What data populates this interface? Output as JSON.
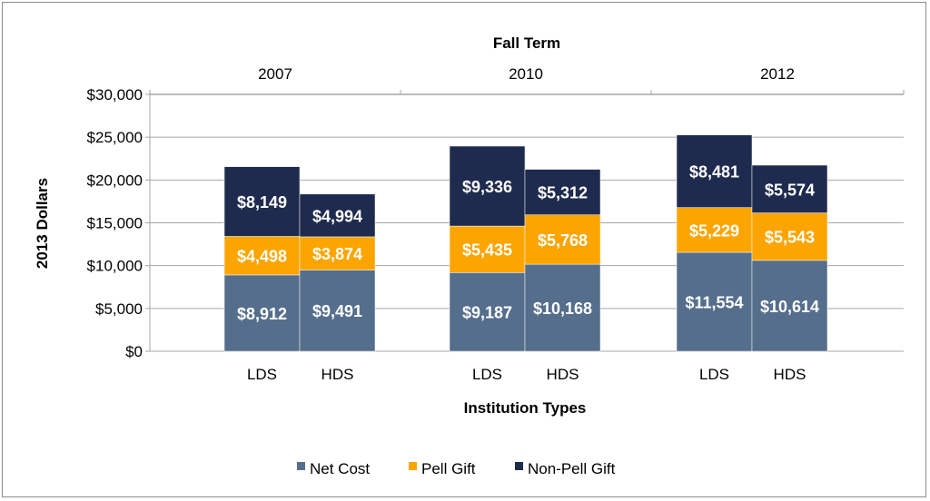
{
  "chart_data": {
    "type": "bar",
    "stacked": true,
    "title": "",
    "top_axis_title": "Fall Term",
    "xlabel": "Institution Types",
    "ylabel": "2013 Dollars",
    "ylim": [
      0,
      30000
    ],
    "yticks": [
      0,
      5000,
      10000,
      15000,
      20000,
      25000,
      30000
    ],
    "ytick_labels": [
      "$0",
      "$5,000",
      "$10,000",
      "$15,000",
      "$20,000",
      "$25,000",
      "$30,000"
    ],
    "grid": true,
    "legend_position": "bottom",
    "groups": [
      "2007",
      "2010",
      "2012"
    ],
    "categories": [
      "LDS",
      "HDS",
      "LDS",
      "HDS",
      "LDS",
      "HDS"
    ],
    "series": [
      {
        "name": "Net Cost",
        "color": "#556e8c",
        "values": [
          8912,
          9491,
          9187,
          10168,
          11554,
          10614
        ],
        "labels": [
          "$8,912",
          "$9,491",
          "$9,187",
          "$10,168",
          "$11,554",
          "$10,614"
        ]
      },
      {
        "name": "Pell Gift",
        "color": "#fca500",
        "values": [
          4498,
          3874,
          5435,
          5768,
          5229,
          5543
        ],
        "labels": [
          "$4,498",
          "$3,874",
          "$5,435",
          "$5,768",
          "$5,229",
          "$5,543"
        ]
      },
      {
        "name": "Non-Pell Gift",
        "color": "#1f2b4e",
        "values": [
          8149,
          4994,
          9336,
          5312,
          8481,
          5574
        ],
        "labels": [
          "$8,149",
          "$4,994",
          "$9,336",
          "$5,312",
          "$8,481",
          "$5,574"
        ]
      }
    ]
  }
}
